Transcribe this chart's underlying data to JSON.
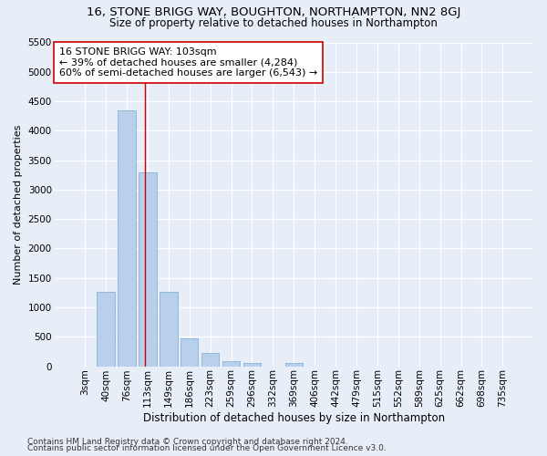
{
  "title1": "16, STONE BRIGG WAY, BOUGHTON, NORTHAMPTON, NN2 8GJ",
  "title2": "Size of property relative to detached houses in Northampton",
  "xlabel": "Distribution of detached houses by size in Northampton",
  "ylabel": "Number of detached properties",
  "categories": [
    "3sqm",
    "40sqm",
    "76sqm",
    "113sqm",
    "149sqm",
    "186sqm",
    "223sqm",
    "259sqm",
    "296sqm",
    "332sqm",
    "369sqm",
    "406sqm",
    "442sqm",
    "479sqm",
    "515sqm",
    "552sqm",
    "589sqm",
    "625sqm",
    "662sqm",
    "698sqm",
    "735sqm"
  ],
  "bar_values": [
    0,
    1270,
    4350,
    3300,
    1270,
    480,
    230,
    80,
    60,
    0,
    55,
    0,
    0,
    0,
    0,
    0,
    0,
    0,
    0,
    0,
    0
  ],
  "bar_color": "#b8d0ec",
  "bar_edge_color": "#89b0d8",
  "vline_x": 2.88,
  "vline_color": "#cc0000",
  "annotation_line1": "16 STONE BRIGG WAY: 103sqm",
  "annotation_line2": "← 39% of detached houses are smaller (4,284)",
  "annotation_line3": "60% of semi-detached houses are larger (6,543) →",
  "annotation_box_color": "#ffffff",
  "annotation_box_edge": "#cc0000",
  "ylim": [
    0,
    5500
  ],
  "yticks": [
    0,
    500,
    1000,
    1500,
    2000,
    2500,
    3000,
    3500,
    4000,
    4500,
    5000,
    5500
  ],
  "footer1": "Contains HM Land Registry data © Crown copyright and database right 2024.",
  "footer2": "Contains public sector information licensed under the Open Government Licence v3.0.",
  "bg_color": "#e8eef8",
  "grid_color": "#ffffff",
  "title1_fontsize": 9.5,
  "title2_fontsize": 8.5,
  "xlabel_fontsize": 8.5,
  "ylabel_fontsize": 8,
  "tick_fontsize": 7.5,
  "annotation_fontsize": 8,
  "footer_fontsize": 6.5
}
